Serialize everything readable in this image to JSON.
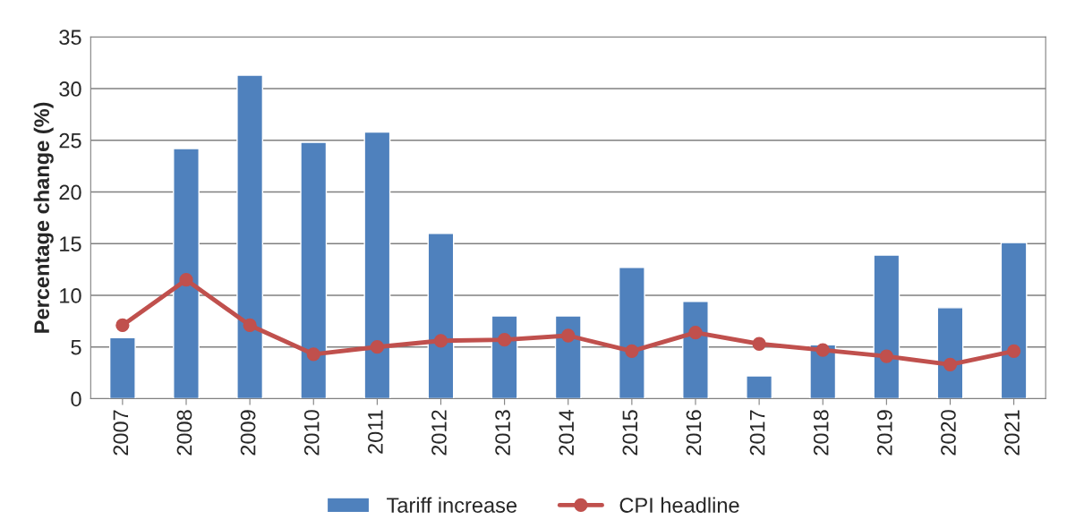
{
  "chart_data": {
    "type": "bar",
    "ylabel": "Percentage change (%)",
    "categories": [
      "2007",
      "2008",
      "2009",
      "2010",
      "2011",
      "2012",
      "2013",
      "2014",
      "2015",
      "2016",
      "2017",
      "2018",
      "2019",
      "2020",
      "2021"
    ],
    "series": [
      {
        "name": "Tariff increase",
        "color": "#4f81bd",
        "values": [
          5.9,
          24.2,
          31.3,
          24.8,
          25.8,
          16.0,
          8.0,
          8.0,
          12.7,
          9.4,
          2.2,
          5.2,
          13.9,
          8.8,
          15.1
        ]
      },
      {
        "name": "CPI headline",
        "type": "line",
        "color": "#c0504d",
        "marker": "circle",
        "line_style": "solid",
        "values": [
          7.1,
          11.5,
          7.1,
          4.3,
          5.0,
          5.6,
          5.7,
          6.1,
          4.6,
          6.4,
          5.3,
          4.7,
          4.1,
          3.3,
          4.6
        ]
      }
    ],
    "ylim": [
      0,
      35
    ],
    "yticks": [
      0,
      5,
      10,
      15,
      20,
      25,
      30,
      35
    ],
    "grid": "y",
    "legend": "bottom"
  }
}
